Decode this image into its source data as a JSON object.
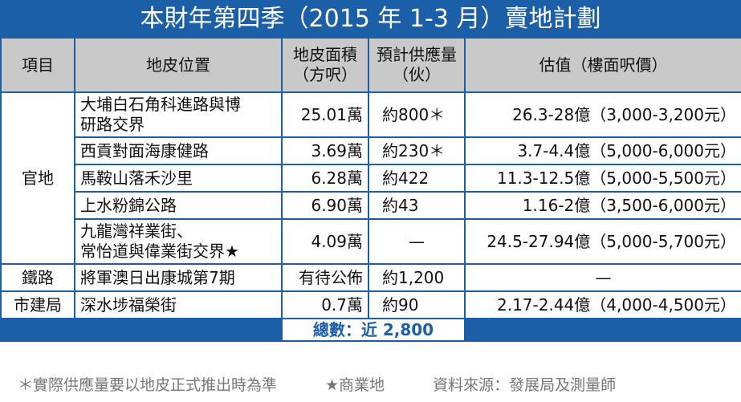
{
  "header": {
    "title": "本財年第四季（2015 年 1-3 月）賣地計劃"
  },
  "table": {
    "columns": [
      "項目",
      "地皮位置",
      "地皮面積\n（方呎）",
      "預計供應量\n（伙）",
      "估值（樓面呎價）"
    ],
    "groups": [
      {
        "name": "官地",
        "rows": [
          [
            "大埔白石角科進路與博\n研路交界",
            "25.01萬",
            "約800＊",
            "26.3-28億（3,000-3,200元）"
          ],
          [
            "西貢對面海康健路",
            "3.69萬",
            "約230＊",
            "3.7-4.4億（5,000-6,000元）"
          ],
          [
            "馬鞍山落禾沙里",
            "6.28萬",
            "約422",
            "11.3-12.5億（5,000-5,500元）"
          ],
          [
            "上水粉錦公路",
            "6.90萬",
            "約43",
            "1.16-2億（3,500-6,000元）"
          ],
          [
            "九龍灣祥業街、\n常怡道與偉業街交界★",
            "4.09萬",
            "—",
            "24.5-27.94億（5,000-5,700元）"
          ]
        ]
      },
      {
        "name": "鐵路",
        "rows": [
          [
            "將軍澳日出康城第7期",
            "有待公佈",
            "約1,200",
            "—"
          ]
        ]
      },
      {
        "name": "市建局",
        "rows": [
          [
            "深水埗福榮街",
            "0.7萬",
            "約90",
            "2.17-2.44億（4,000-4,500元）"
          ]
        ]
      }
    ],
    "total": "總數：近 2,800"
  },
  "footnotes": [
    "＊實際供應量要以地皮正式推出時為準",
    "★商業地",
    "資料來源：發展局及測量師"
  ]
}
